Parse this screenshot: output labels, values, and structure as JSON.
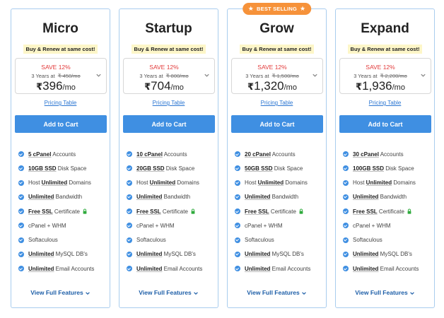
{
  "ribbon_text": "BEST SELLING",
  "plans": [
    {
      "name": "Micro",
      "tagline": "Buy & Renew at same cost!",
      "save": "SAVE 12%",
      "term": "3 Years at",
      "old_price": "₹ 450/mo",
      "currency": "₹",
      "price": "396",
      "per": "/mo",
      "pricing_table": "Pricing Table",
      "cart": "Add to Cart",
      "features": [
        {
          "bold": "5 cPanel",
          "text": " Accounts"
        },
        {
          "bold": "10GB SSD",
          "text": " Disk Space"
        },
        {
          "pre": "Host ",
          "bold": "Unlimited",
          "text": " Domains"
        },
        {
          "bold": "Unlimited",
          "text": " Bandwidth"
        },
        {
          "bold": "Free SSL",
          "text": " Certificate",
          "lock": true
        },
        {
          "text": "cPanel + WHM"
        },
        {
          "text": "Softaculous"
        },
        {
          "bold": "Unlimited",
          "text": " MySQL DB's"
        },
        {
          "bold": "Unlimited",
          "text": " Email Accounts"
        }
      ],
      "view_full": "View Full Features"
    },
    {
      "name": "Startup",
      "tagline": "Buy & Renew at same cost!",
      "save": "SAVE 12%",
      "term": "3 Years at",
      "old_price": "₹ 800/mo",
      "currency": "₹",
      "price": "704",
      "per": "/mo",
      "pricing_table": "Pricing Table",
      "cart": "Add to Cart",
      "features": [
        {
          "bold": "10 cPanel",
          "text": " Accounts"
        },
        {
          "bold": "20GB SSD",
          "text": " Disk Space"
        },
        {
          "pre": "Host ",
          "bold": "Unlimited",
          "text": " Domains"
        },
        {
          "bold": "Unlimited",
          "text": " Bandwidth"
        },
        {
          "bold": "Free SSL",
          "text": " Certificate",
          "lock": true
        },
        {
          "text": "cPanel + WHM"
        },
        {
          "text": "Softaculous"
        },
        {
          "bold": "Unlimited",
          "text": " MySQL DB's"
        },
        {
          "bold": "Unlimited",
          "text": " Email Accounts"
        }
      ],
      "view_full": "View Full Features"
    },
    {
      "name": "Grow",
      "badge": true,
      "tagline": "Buy & Renew at same cost!",
      "save": "SAVE 12%",
      "term": "3 Years at",
      "old_price": "₹ 1,500/mo",
      "currency": "₹",
      "price": "1,320",
      "per": "/mo",
      "pricing_table": "Pricing Table",
      "cart": "Add to Cart",
      "features": [
        {
          "bold": "20 cPanel",
          "text": " Accounts"
        },
        {
          "bold": "50GB SSD",
          "text": " Disk Space"
        },
        {
          "pre": "Host ",
          "bold": "Unlimited",
          "text": " Domains"
        },
        {
          "bold": "Unlimited",
          "text": " Bandwidth"
        },
        {
          "bold": "Free SSL",
          "text": " Certificate",
          "lock": true
        },
        {
          "text": "cPanel + WHM"
        },
        {
          "text": "Softaculous"
        },
        {
          "bold": "Unlimited",
          "text": " MySQL DB's"
        },
        {
          "bold": "Unlimited",
          "text": " Email Accounts"
        }
      ],
      "view_full": "View Full Features"
    },
    {
      "name": "Expand",
      "tagline": "Buy & Renew at same cost!",
      "save": "SAVE 12%",
      "term": "3 Years at",
      "old_price": "₹ 2,200/mo",
      "currency": "₹",
      "price": "1,936",
      "per": "/mo",
      "pricing_table": "Pricing Table",
      "cart": "Add to Cart",
      "features": [
        {
          "bold": "30 cPanel",
          "text": " Accounts"
        },
        {
          "bold": "100GB SSD",
          "text": " Disk Space"
        },
        {
          "pre": "Host ",
          "bold": "Unlimited",
          "text": " Domains"
        },
        {
          "bold": "Unlimited",
          "text": " Bandwidth"
        },
        {
          "bold": "Free SSL",
          "text": " Certificate",
          "lock": true
        },
        {
          "text": "cPanel + WHM"
        },
        {
          "text": "Softaculous"
        },
        {
          "bold": "Unlimited",
          "text": " MySQL DB's"
        },
        {
          "bold": "Unlimited",
          "text": " Email Accounts"
        }
      ],
      "view_full": "View Full Features"
    }
  ],
  "colors": {
    "accent": "#3f8fe2",
    "card_border": "#a9cdee",
    "save_red": "#e23b3b",
    "ribbon_orange": "#f6923a",
    "tagline_bg": "#fdf6c8",
    "lock_green": "#2eaa3c"
  },
  "icons": {
    "feature": "check-circle-icon",
    "ssl": "lock-icon",
    "ribbon": "star-icon",
    "price_toggle": "chevron-down-icon",
    "view_full": "chevron-down-icon"
  }
}
